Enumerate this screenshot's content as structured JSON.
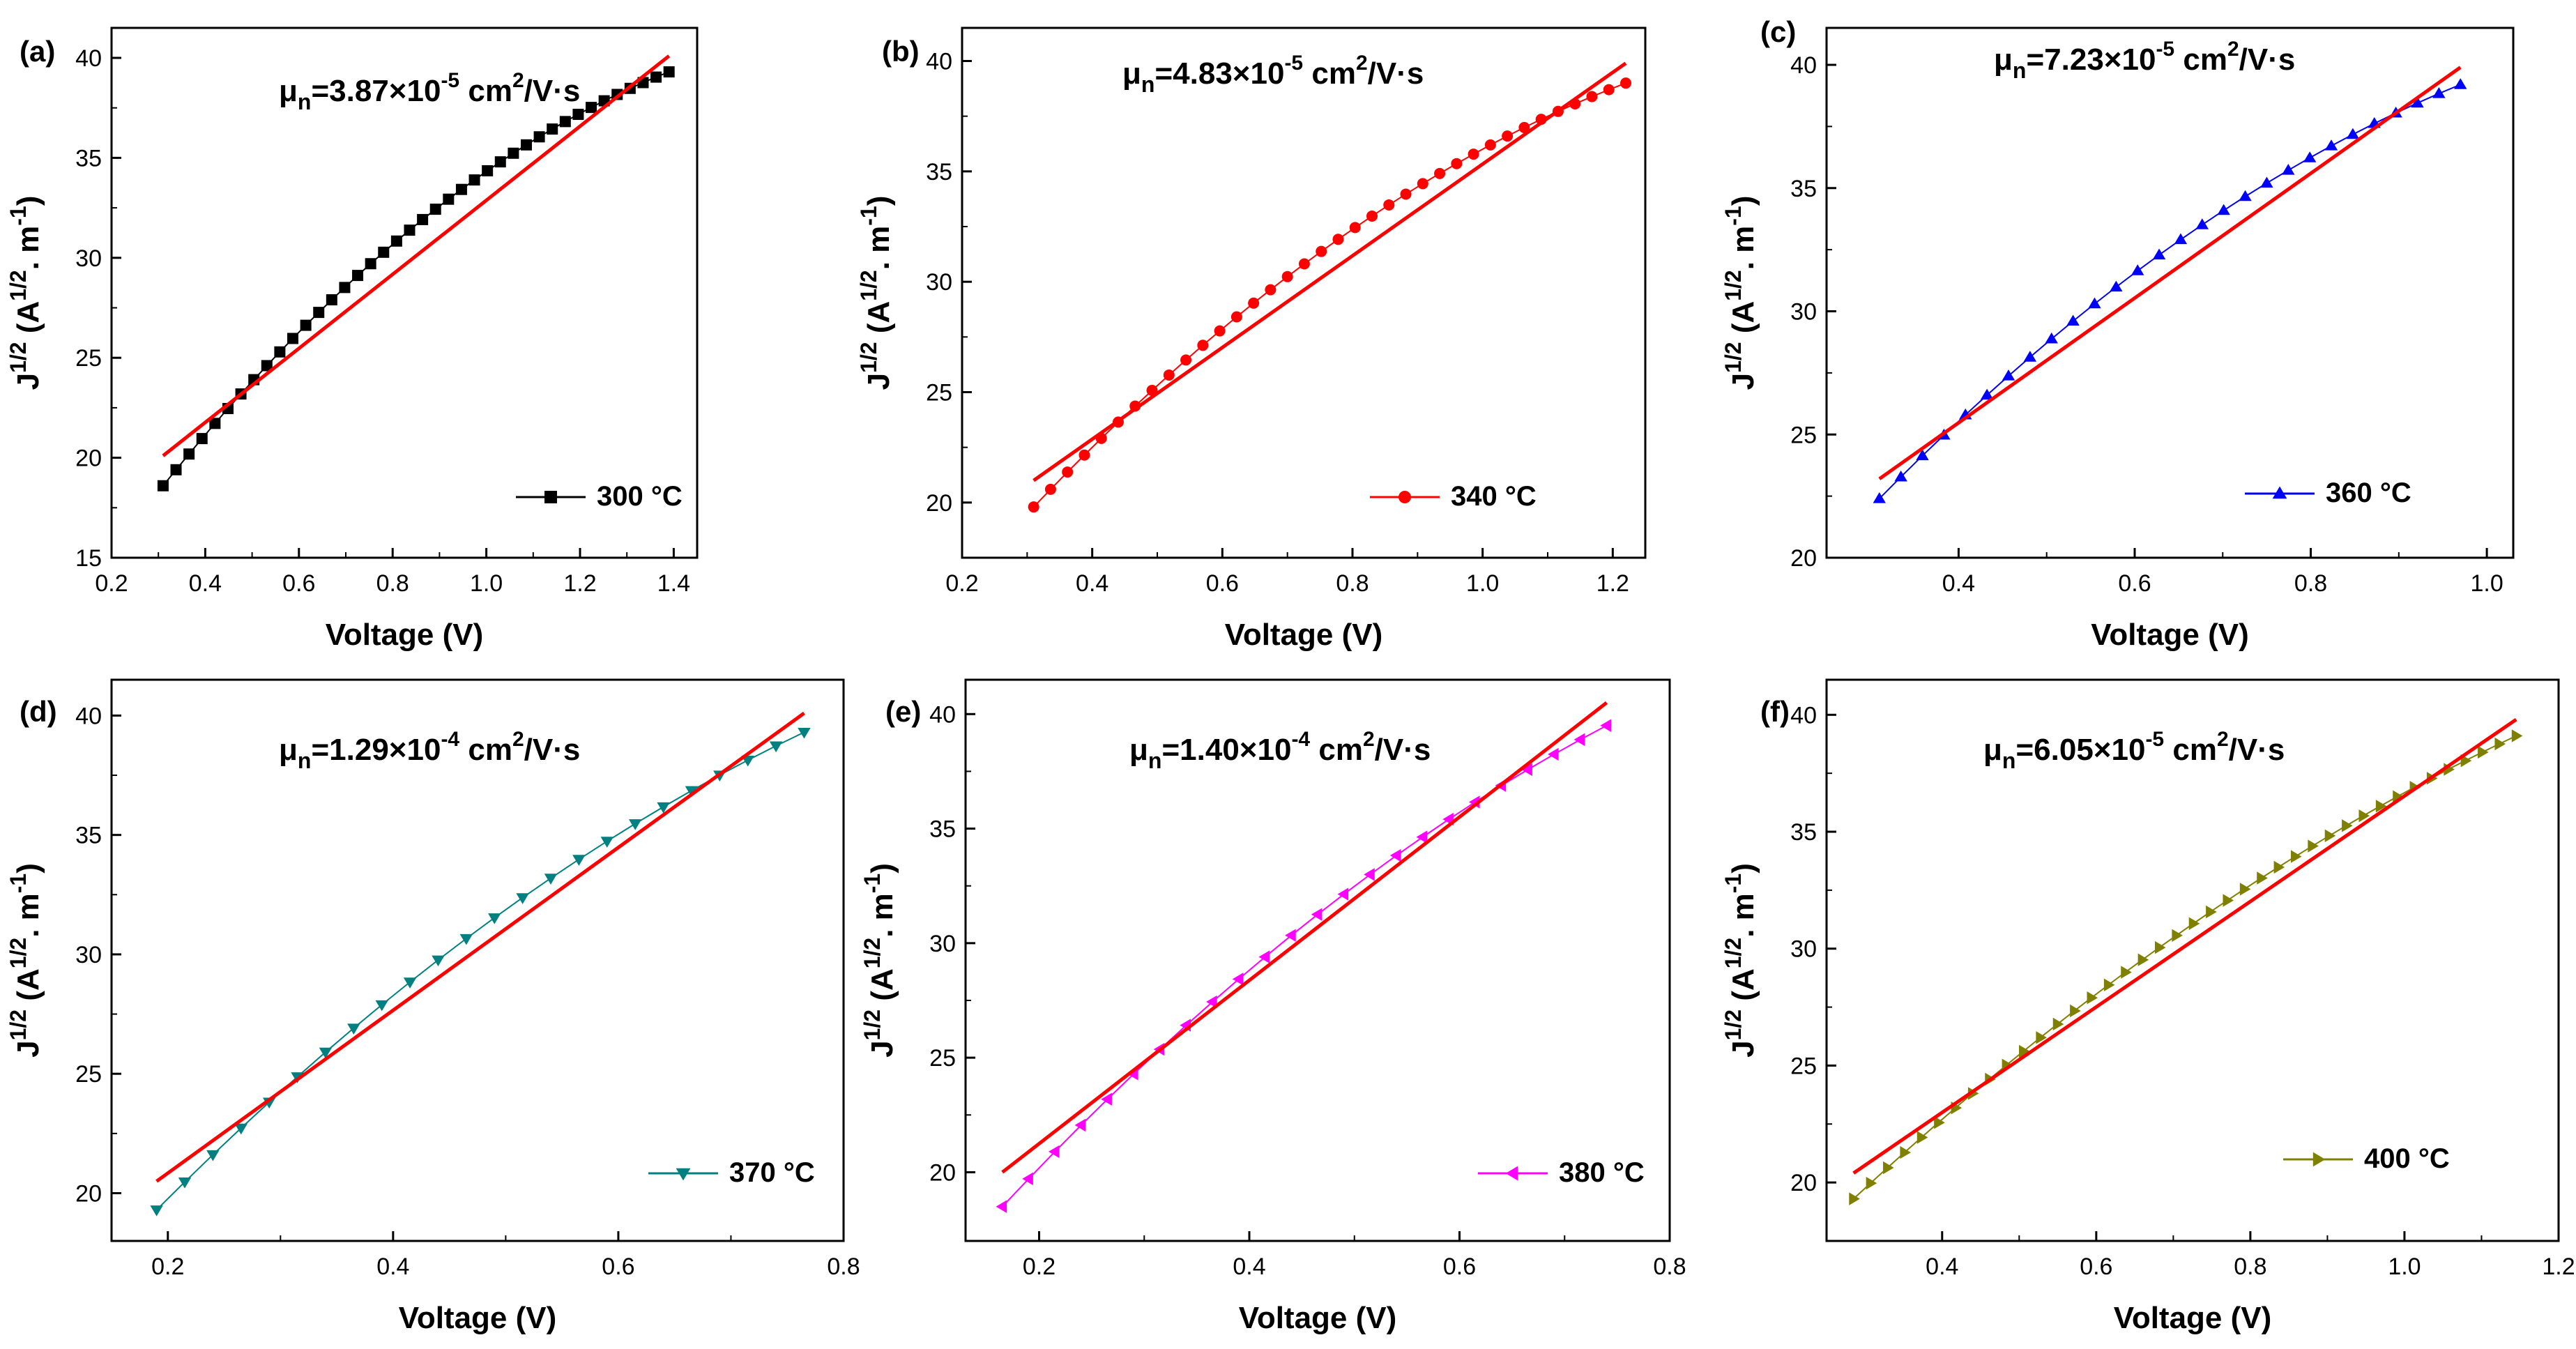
{
  "figure": {
    "colors": {
      "fit": "#ff0000",
      "axis": "#000000"
    }
  },
  "chart_data": [
    {
      "panel_label": "(a)",
      "type": "scatter",
      "xlabel": "Voltage (V)",
      "ylabel_main": "J",
      "ylabel_sup": "1/2",
      "ylabel_unit": "(A",
      "ylabel_unit_sup": "1/2",
      "ylabel_unit_mid": ". m",
      "ylabel_unit_sup2": "-1",
      "ylabel_close": ")",
      "xlim": [
        0.2,
        1.45
      ],
      "ylim": [
        15,
        41.5
      ],
      "xticks": [
        0.2,
        0.4,
        0.6,
        0.8,
        1.0,
        1.2,
        1.4
      ],
      "xtick_labels": [
        "0.2",
        "0.4",
        "0.6",
        "0.8",
        "1.0",
        "1.2",
        "1.4"
      ],
      "yticks": [
        15,
        20,
        25,
        30,
        35,
        40
      ],
      "ytick_labels": [
        "15",
        "20",
        "25",
        "30",
        "35",
        "40"
      ],
      "mu": {
        "prefix": "μ",
        "sub": "n",
        "value": "=3.87×10",
        "exp": "-5",
        "unit": " cm",
        "unit_sup": "2",
        "unit_rest": "/V·s"
      },
      "legend": {
        "label": "300 °C"
      },
      "series": {
        "name": "300 °C",
        "color": "#000000",
        "marker": "square",
        "x_start": 0.31,
        "x_end": 1.39,
        "n": 40,
        "y_start": 18.6,
        "y_end": 39.3,
        "curve": 3.0
      },
      "fit": {
        "x": [
          0.31,
          1.39
        ],
        "y": [
          20.1,
          40.1
        ]
      }
    },
    {
      "panel_label": "(b)",
      "type": "scatter",
      "xlabel": "Voltage (V)",
      "ylabel_main": "J",
      "ylabel_sup": "1/2",
      "ylabel_unit": "(A",
      "ylabel_unit_sup": "1/2",
      "ylabel_unit_mid": ". m",
      "ylabel_unit_sup2": "-1",
      "ylabel_close": ")",
      "xlim": [
        0.2,
        1.25
      ],
      "ylim": [
        17.5,
        41.5
      ],
      "xticks": [
        0.2,
        0.4,
        0.6,
        0.8,
        1.0,
        1.2
      ],
      "xtick_labels": [
        "0.2",
        "0.4",
        "0.6",
        "0.8",
        "1.0",
        "1.2"
      ],
      "yticks": [
        20,
        25,
        30,
        35,
        40
      ],
      "ytick_labels": [
        "20",
        "25",
        "30",
        "35",
        "40"
      ],
      "mu": {
        "prefix": "μ",
        "sub": "n",
        "value": "=4.83×10",
        "exp": "-5",
        "unit": " cm",
        "unit_sup": "2",
        "unit_rest": "/V·s"
      },
      "legend": {
        "label": "340 °C"
      },
      "series": {
        "name": "340 °C",
        "color": "#ff0000",
        "marker": "circle",
        "x_start": 0.31,
        "x_end": 1.22,
        "n": 36,
        "y_start": 19.8,
        "y_end": 39.0,
        "curve": 2.5
      },
      "fit": {
        "x": [
          0.31,
          1.22
        ],
        "y": [
          21.0,
          39.9
        ]
      }
    },
    {
      "panel_label": "(c)",
      "type": "scatter",
      "xlabel": "Voltage (V)",
      "ylabel_main": "J",
      "ylabel_sup": "1/2",
      "ylabel_unit": "(A",
      "ylabel_unit_sup": "1/2",
      "ylabel_unit_mid": ". m",
      "ylabel_unit_sup2": "-1",
      "ylabel_close": ")",
      "xlim": [
        0.25,
        1.03
      ],
      "ylim": [
        20,
        41.5
      ],
      "xticks": [
        0.4,
        0.6,
        0.8,
        1.0
      ],
      "xtick_labels": [
        "0.4",
        "0.6",
        "0.8",
        "1.0"
      ],
      "yticks": [
        20,
        25,
        30,
        35,
        40
      ],
      "ytick_labels": [
        "20",
        "25",
        "30",
        "35",
        "40"
      ],
      "mu": {
        "prefix": "μ",
        "sub": "n",
        "value": "=7.23×10",
        "exp": "-5",
        "unit": " cm",
        "unit_sup": "2",
        "unit_rest": "/V·s"
      },
      "legend": {
        "label": "360 °C"
      },
      "series": {
        "name": "360 °C",
        "color": "#0000ff",
        "marker": "triangle-up",
        "x_start": 0.31,
        "x_end": 0.97,
        "n": 28,
        "y_start": 22.4,
        "y_end": 39.2,
        "curve": 2.0
      },
      "fit": {
        "x": [
          0.31,
          0.97
        ],
        "y": [
          23.2,
          39.9
        ]
      }
    },
    {
      "panel_label": "(d)",
      "type": "scatter",
      "xlabel": "Voltage (V)",
      "ylabel_main": "J",
      "ylabel_sup": "1/2",
      "ylabel_unit": "(A",
      "ylabel_unit_sup": "1/2",
      "ylabel_unit_mid": ". m",
      "ylabel_unit_sup2": "-1",
      "ylabel_close": ")",
      "xlim": [
        0.15,
        0.8
      ],
      "ylim": [
        18,
        41.5
      ],
      "xticks": [
        0.2,
        0.4,
        0.6,
        0.8
      ],
      "xtick_labels": [
        "0.2",
        "0.4",
        "0.6",
        "0.8"
      ],
      "yticks": [
        20,
        25,
        30,
        35,
        40
      ],
      "ytick_labels": [
        "20",
        "25",
        "30",
        "35",
        "40"
      ],
      "mu": {
        "prefix": "μ",
        "sub": "n",
        "value": "=1.29×10",
        "exp": "-4",
        "unit": " cm",
        "unit_sup": "2",
        "unit_rest": "/V·s"
      },
      "legend": {
        "label": "370 °C"
      },
      "series": {
        "name": "370 °C",
        "color": "#008080",
        "marker": "triangle-down",
        "x_start": 0.19,
        "x_end": 0.765,
        "n": 24,
        "y_start": 19.3,
        "y_end": 39.3,
        "curve": 2.0
      },
      "fit": {
        "x": [
          0.19,
          0.765
        ],
        "y": [
          20.5,
          40.1
        ]
      }
    },
    {
      "panel_label": "(e)",
      "type": "scatter",
      "xlabel": "Voltage (V)",
      "ylabel_main": "J",
      "ylabel_sup": "1/2",
      "ylabel_unit": "(A",
      "ylabel_unit_sup": "1/2",
      "ylabel_unit_mid": ". m",
      "ylabel_unit_sup2": "-1",
      "ylabel_close": ")",
      "xlim": [
        0.13,
        0.8
      ],
      "ylim": [
        17,
        41.5
      ],
      "xticks": [
        0.2,
        0.4,
        0.6,
        0.8
      ],
      "xtick_labels": [
        "0.2",
        "0.4",
        "0.6",
        "0.8"
      ],
      "yticks": [
        20,
        25,
        30,
        35,
        40
      ],
      "ytick_labels": [
        "20",
        "25",
        "30",
        "35",
        "40"
      ],
      "mu": {
        "prefix": "μ",
        "sub": "n",
        "value": "=1.40×10",
        "exp": "-4",
        "unit": " cm",
        "unit_sup": "2",
        "unit_rest": "/V·s"
      },
      "legend": {
        "label": "380 °C"
      },
      "series": {
        "name": "380 °C",
        "color": "#ff00ff",
        "marker": "triangle-left",
        "x_start": 0.165,
        "x_end": 0.74,
        "n": 24,
        "y_start": 18.5,
        "y_end": 39.5,
        "curve": 2.0
      },
      "fit": {
        "x": [
          0.165,
          0.74
        ],
        "y": [
          20.0,
          40.5
        ]
      }
    },
    {
      "panel_label": "(f)",
      "type": "scatter",
      "xlabel": "Voltage (V)",
      "ylabel_main": "J",
      "ylabel_sup": "1/2",
      "ylabel_unit": "(A",
      "ylabel_unit_sup": "1/2",
      "ylabel_unit_mid": ". m",
      "ylabel_unit_sup2": "-1",
      "ylabel_close": ")",
      "xlim": [
        0.25,
        1.2
      ],
      "ylim": [
        17.5,
        41.5
      ],
      "xticks": [
        0.4,
        0.6,
        0.8,
        1.0,
        1.2
      ],
      "xtick_labels": [
        "0.4",
        "0.6",
        "0.8",
        "1.0",
        "1.2"
      ],
      "yticks": [
        20,
        25,
        30,
        35,
        40
      ],
      "ytick_labels": [
        "20",
        "25",
        "30",
        "35",
        "40"
      ],
      "mu": {
        "prefix": "μ",
        "sub": "n",
        "value": "=6.05×10",
        "exp": "-5",
        "unit": " cm",
        "unit_sup": "2",
        "unit_rest": "/V·s"
      },
      "legend": {
        "label": "400 °C"
      },
      "series": {
        "name": "400 °C",
        "color": "#808000",
        "marker": "triangle-right",
        "x_start": 0.285,
        "x_end": 1.145,
        "n": 40,
        "y_start": 19.3,
        "y_end": 39.1,
        "curve": 1.8
      },
      "fit": {
        "x": [
          0.285,
          1.145
        ],
        "y": [
          20.4,
          39.8
        ]
      }
    }
  ]
}
